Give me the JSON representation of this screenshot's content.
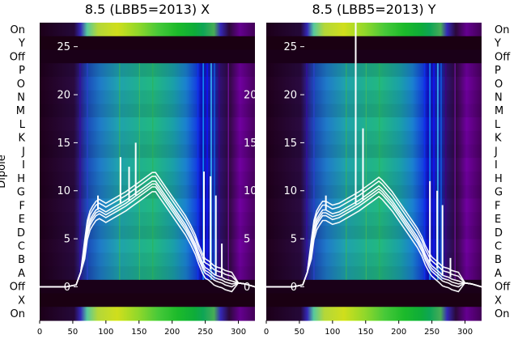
{
  "chart_data": [
    {
      "type": "heatmap",
      "title": "8.5 (LBB5=2013) X",
      "ylabel": "Dipole",
      "row_labels": [
        "On",
        "Y",
        "Off",
        "P",
        "O",
        "N",
        "M",
        "L",
        "K",
        "J",
        "I",
        "H",
        "G",
        "F",
        "E",
        "D",
        "C",
        "B",
        "A",
        "Off",
        "X",
        "On"
      ],
      "xticks": [
        0,
        50,
        100,
        150,
        200,
        250,
        300
      ],
      "xlim": [
        0,
        325
      ],
      "overlay_yticks": [
        0,
        5,
        10,
        15,
        20,
        25
      ],
      "overlay_ylim": [
        -3.5,
        27.5
      ],
      "overlay_series": {
        "x": [
          0,
          20,
          40,
          55,
          62,
          68,
          72,
          76,
          80,
          85,
          90,
          95,
          100,
          110,
          120,
          130,
          140,
          150,
          160,
          170,
          175,
          180,
          190,
          200,
          210,
          220,
          228,
          235,
          240,
          243,
          246,
          250,
          255,
          260,
          263,
          266,
          270,
          275,
          280,
          290,
          300,
          310,
          325
        ],
        "y": [
          0,
          0,
          0,
          0.2,
          1.5,
          4,
          6,
          7,
          7.5,
          8,
          8.2,
          8,
          7.8,
          8.2,
          8.6,
          9,
          9.5,
          10,
          10.5,
          11,
          11,
          10.5,
          9.5,
          8.5,
          7.5,
          6.5,
          5.5,
          4.5,
          3.5,
          3,
          2.5,
          2,
          1.8,
          1.5,
          1.3,
          1.2,
          1.1,
          1,
          0.8,
          0.6,
          0.4,
          0.3,
          0
        ],
        "spikes": [
          [
            88,
            9.5
          ],
          [
            122,
            13.5
          ],
          [
            135,
            12.5
          ],
          [
            145,
            15
          ],
          [
            248,
            12
          ],
          [
            258,
            11.5
          ],
          [
            266,
            9.5
          ],
          [
            275,
            4.5
          ]
        ]
      }
    },
    {
      "type": "heatmap",
      "title": "8.5 (LBB5=2013) Y",
      "ylabel": "",
      "row_labels": [
        "On",
        "Y",
        "Off",
        "P",
        "O",
        "N",
        "M",
        "L",
        "K",
        "J",
        "I",
        "H",
        "G",
        "F",
        "E",
        "D",
        "C",
        "B",
        "A",
        "Off",
        "X",
        "On"
      ],
      "xticks": [
        0,
        50,
        100,
        150,
        200,
        250,
        300
      ],
      "xlim": [
        0,
        325
      ],
      "overlay_yticks": [
        0,
        5,
        10,
        15,
        20,
        25
      ],
      "overlay_ylim": [
        -3.5,
        27.5
      ],
      "overlay_series": {
        "x": [
          0,
          20,
          40,
          55,
          62,
          68,
          72,
          76,
          80,
          85,
          90,
          95,
          100,
          110,
          120,
          130,
          140,
          150,
          160,
          170,
          175,
          180,
          190,
          200,
          210,
          220,
          228,
          235,
          240,
          243,
          246,
          250,
          255,
          260,
          263,
          266,
          270,
          275,
          280,
          290,
          300,
          310,
          325
        ],
        "y": [
          0,
          0,
          0,
          0.2,
          1.5,
          4,
          6,
          7,
          7.5,
          8,
          8,
          7.8,
          7.6,
          7.8,
          8.2,
          8.6,
          9,
          9.5,
          10,
          10.5,
          10.2,
          9.8,
          9,
          8,
          7,
          6,
          5.2,
          4.3,
          3.4,
          3,
          2.6,
          2.2,
          1.9,
          1.6,
          1.4,
          1.2,
          1.1,
          1,
          0.8,
          0.6,
          0.4,
          0.3,
          0
        ],
        "spikes": [
          [
            90,
            9.5
          ],
          [
            135,
            27.5
          ],
          [
            146,
            16.5
          ],
          [
            247,
            11
          ],
          [
            258,
            10
          ],
          [
            266,
            8.5
          ],
          [
            278,
            3
          ]
        ]
      }
    }
  ],
  "colors": {
    "band_dark": "#1a0018",
    "overlay_line": "#ffffff"
  }
}
